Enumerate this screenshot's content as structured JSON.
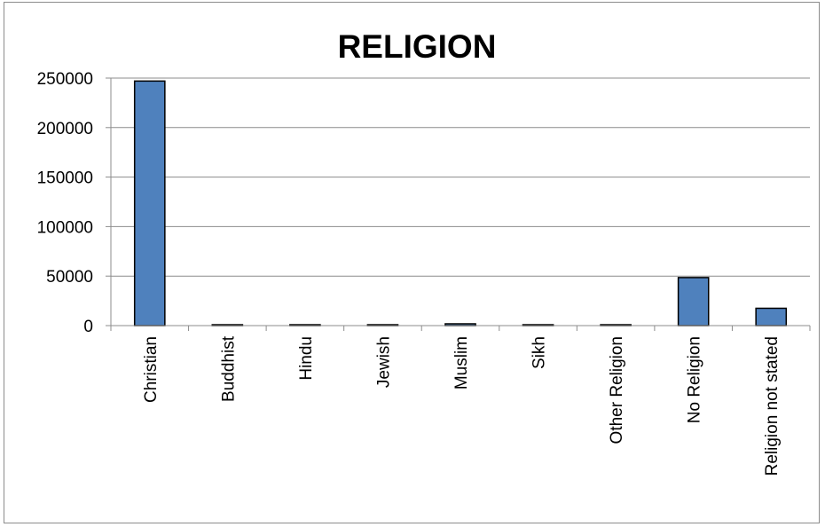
{
  "chart_data": {
    "type": "bar",
    "title": "RELIGION",
    "xlabel": "",
    "ylabel": "",
    "categories": [
      "Christian",
      "Buddhist",
      "Hindu",
      "Jewish",
      "Muslim",
      "Sikh",
      "Other Religion",
      "No Religion",
      "Religion not stated"
    ],
    "values": [
      247000,
      600,
      600,
      300,
      1800,
      200,
      700,
      48500,
      17500
    ],
    "ylim": [
      0,
      250000
    ],
    "yticks": [
      "0",
      "50000",
      "100000",
      "150000",
      "200000",
      "250000"
    ],
    "ytick_values": [
      0,
      50000,
      100000,
      150000,
      200000,
      250000
    ],
    "grid": true,
    "legend": "none",
    "colors": {
      "bar": "#4f81bd",
      "bar_outline": "#000000",
      "grid": "#8c8c8c"
    }
  }
}
